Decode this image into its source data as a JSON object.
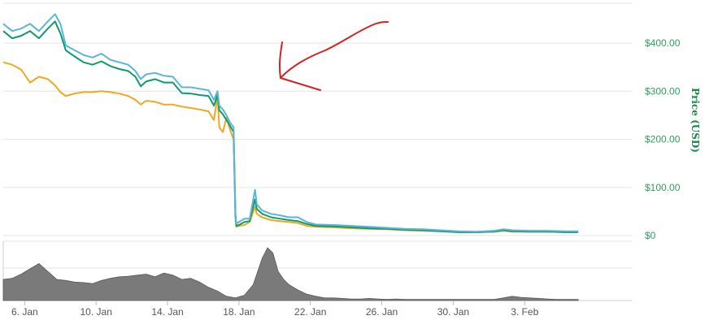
{
  "chart_data": {
    "type": "line",
    "ylabel": "Price (USD)",
    "ylim": [
      0,
      500
    ],
    "grid": true,
    "x_ticks": [
      "6. Jan",
      "10. Jan",
      "14. Jan",
      "18. Jan",
      "22. Jan",
      "26. Jan",
      "30. Jan",
      "3. Feb"
    ],
    "y_ticks": [
      "$400.00",
      "$300.00",
      "$200.00",
      "$100.00",
      "$0"
    ],
    "y_tick_values": [
      400,
      300,
      200,
      100,
      0
    ],
    "x_tick_days": [
      6,
      10,
      14,
      18,
      22,
      26,
      30,
      34
    ],
    "x_range_days": [
      4.8,
      40.0
    ],
    "colors": {
      "series_blue": "#5ab4dc",
      "series_green": "#0f9a6e",
      "series_orange": "#f0a81e",
      "volume": "#7a7a7a",
      "grid": "#e6e6e6",
      "annotation": "#d62020",
      "axis_text": "#2e9e5e"
    },
    "series": [
      {
        "x": [
          4.8,
          5.3,
          5.8,
          6.3,
          6.8,
          7.3,
          7.7,
          8.0,
          8.3,
          8.8,
          9.3,
          9.8,
          10.3,
          10.8,
          11.3,
          11.8,
          12.2,
          12.5,
          12.8,
          13.3,
          13.8,
          14.3,
          14.8,
          15.3,
          15.8,
          16.3,
          16.6,
          16.8,
          16.9,
          17.1,
          17.3,
          17.5,
          17.7,
          17.8,
          17.85,
          18.0,
          18.3,
          18.6,
          18.9,
          19.0,
          19.3,
          19.8,
          20.3,
          20.8,
          21.3,
          21.8,
          22.3,
          23.3,
          24.3,
          25.3,
          26.3,
          27.3,
          28.3,
          29.3,
          30.3,
          31.3,
          32.3,
          32.8,
          33.3,
          34.3,
          35.3,
          36.3,
          37.0
        ],
        "y": [
          440,
          425,
          430,
          440,
          425,
          445,
          460,
          440,
          395,
          385,
          375,
          370,
          378,
          365,
          360,
          355,
          342,
          325,
          335,
          338,
          332,
          330,
          308,
          308,
          305,
          302,
          282,
          300,
          270,
          262,
          250,
          235,
          225,
          50,
          25,
          28,
          35,
          35,
          95,
          65,
          52,
          45,
          42,
          38,
          38,
          28,
          23,
          22,
          20,
          18,
          16,
          14,
          13,
          11,
          9,
          8,
          10,
          13,
          11,
          10,
          10,
          9,
          9
        ]
      },
      {
        "x": [
          4.8,
          5.3,
          5.8,
          6.3,
          6.8,
          7.3,
          7.7,
          8.0,
          8.3,
          8.8,
          9.3,
          9.8,
          10.3,
          10.8,
          11.3,
          11.8,
          12.2,
          12.5,
          12.8,
          13.3,
          13.8,
          14.3,
          14.8,
          15.3,
          15.8,
          16.3,
          16.6,
          16.8,
          16.9,
          17.1,
          17.3,
          17.5,
          17.7,
          17.8,
          17.85,
          18.0,
          18.3,
          18.6,
          18.9,
          19.0,
          19.3,
          19.8,
          20.3,
          20.8,
          21.3,
          21.8,
          22.3,
          23.3,
          24.3,
          25.3,
          26.3,
          27.3,
          28.3,
          29.3,
          30.3,
          31.3,
          32.3,
          32.8,
          33.3,
          34.3,
          35.3,
          36.3,
          37.0
        ],
        "y": [
          425,
          410,
          415,
          425,
          410,
          430,
          445,
          420,
          385,
          372,
          360,
          355,
          362,
          352,
          346,
          342,
          330,
          310,
          320,
          325,
          318,
          318,
          296,
          295,
          292,
          290,
          270,
          292,
          260,
          252,
          240,
          228,
          215,
          40,
          20,
          22,
          28,
          30,
          75,
          55,
          45,
          38,
          35,
          32,
          30,
          24,
          20,
          19,
          17,
          15,
          14,
          12,
          11,
          9,
          7,
          7,
          8,
          11,
          9,
          8,
          8,
          7,
          7
        ]
      },
      {
        "x": [
          4.8,
          5.3,
          5.8,
          6.3,
          6.8,
          7.3,
          7.7,
          8.0,
          8.3,
          8.8,
          9.3,
          9.8,
          10.3,
          10.8,
          11.3,
          11.8,
          12.2,
          12.5,
          12.8,
          13.3,
          13.8,
          14.3,
          14.8,
          15.3,
          15.8,
          16.3,
          16.6,
          16.8,
          16.9,
          17.1,
          17.3,
          17.5,
          17.7,
          17.8,
          17.85,
          18.0,
          18.3,
          18.6,
          18.9,
          19.0,
          19.3,
          19.8,
          20.3,
          20.8,
          21.3,
          21.8,
          22.3,
          23.3,
          24.3,
          25.3,
          26.3,
          27.3,
          28.3,
          29.3,
          30.3,
          31.3,
          32.3,
          32.8,
          33.3,
          34.3,
          35.3,
          36.3,
          37.0
        ],
        "y": [
          360,
          355,
          345,
          318,
          330,
          325,
          312,
          298,
          290,
          295,
          298,
          298,
          300,
          298,
          295,
          290,
          282,
          272,
          280,
          278,
          272,
          272,
          268,
          265,
          262,
          258,
          240,
          290,
          225,
          215,
          245,
          220,
          200,
          45,
          18,
          20,
          22,
          28,
          60,
          45,
          38,
          32,
          30,
          28,
          26,
          20,
          18,
          17,
          15,
          14,
          13,
          11,
          10,
          9,
          7,
          7,
          8,
          10,
          8,
          8,
          8,
          7,
          7
        ]
      }
    ],
    "volume": {
      "x": [
        4.8,
        5.3,
        5.8,
        6.3,
        6.8,
        7.3,
        7.8,
        8.3,
        8.8,
        9.3,
        9.8,
        10.3,
        10.8,
        11.3,
        11.8,
        12.3,
        12.8,
        13.3,
        13.8,
        14.3,
        14.8,
        15.3,
        15.8,
        16.3,
        16.8,
        17.3,
        17.8,
        18.3,
        18.8,
        19.3,
        19.6,
        19.9,
        20.2,
        20.5,
        20.8,
        21.3,
        21.8,
        22.3,
        22.8,
        23.3,
        23.8,
        24.3,
        24.8,
        25.3,
        25.8,
        26.3,
        26.8,
        27.3,
        27.8,
        28.3,
        28.8,
        29.3,
        29.8,
        30.3,
        30.8,
        31.3,
        31.8,
        32.3,
        32.8,
        33.3,
        33.8,
        34.3,
        34.8,
        35.3,
        35.8,
        36.3,
        37.0
      ],
      "share": [
        0.4,
        0.42,
        0.5,
        0.6,
        0.7,
        0.55,
        0.4,
        0.38,
        0.35,
        0.34,
        0.32,
        0.38,
        0.42,
        0.45,
        0.46,
        0.48,
        0.5,
        0.45,
        0.52,
        0.48,
        0.4,
        0.42,
        0.35,
        0.25,
        0.18,
        0.08,
        0.05,
        0.1,
        0.3,
        0.8,
        1.0,
        0.9,
        0.55,
        0.4,
        0.3,
        0.2,
        0.12,
        0.08,
        0.05,
        0.05,
        0.04,
        0.03,
        0.03,
        0.04,
        0.03,
        0.02,
        0.03,
        0.02,
        0.02,
        0.02,
        0.02,
        0.02,
        0.02,
        0.02,
        0.02,
        0.02,
        0.02,
        0.02,
        0.05,
        0.08,
        0.06,
        0.05,
        0.04,
        0.03,
        0.02,
        0.02,
        0.02
      ]
    },
    "annotation": "red hand-drawn arrow pointing left at the price lines"
  }
}
